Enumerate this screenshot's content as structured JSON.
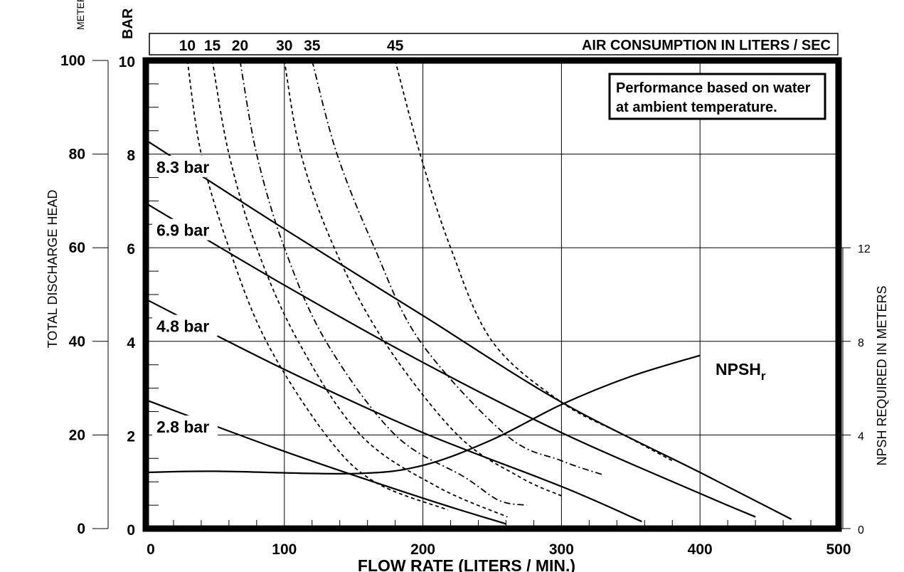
{
  "chart_data": {
    "type": "line",
    "xlabel": "FLOW RATE (LITERS / MIN.)",
    "xlim": [
      0,
      500
    ],
    "x_ticks": [
      "0",
      "100",
      "200",
      "300",
      "400",
      "500"
    ],
    "ylabel_left": "TOTAL DISCHARGE HEAD",
    "ylabel_left_unit": "METERS",
    "y_meters_ticks": [
      "0",
      "20",
      "40",
      "60",
      "80",
      "100"
    ],
    "ylabel_bar": "BAR",
    "ylim_bar": [
      0,
      10
    ],
    "y_bar_ticks": [
      "0",
      "2",
      "4",
      "6",
      "8",
      "10"
    ],
    "ylabel_right": "NPSH REQUIRED IN METERS",
    "y_npsh_ticks": [
      "0",
      "4",
      "8",
      "12"
    ],
    "air_title": "AIR CONSUMPTION IN LITERS / SEC",
    "air_labels": [
      "10",
      "15",
      "20",
      "30",
      "35",
      "45"
    ],
    "note": [
      "Performance based on water",
      "at ambient temperature."
    ],
    "npsh_label": "NPSH",
    "npsh_sub": "r",
    "pressure_series": [
      {
        "name": "8.3 bar",
        "points": [
          [
            0,
            8.3
          ],
          [
            100,
            6.4
          ],
          [
            200,
            4.55
          ],
          [
            300,
            2.7
          ],
          [
            400,
            1.2
          ],
          [
            466,
            0.2
          ]
        ]
      },
      {
        "name": "6.9 bar",
        "points": [
          [
            0,
            6.95
          ],
          [
            100,
            5.2
          ],
          [
            200,
            3.55
          ],
          [
            300,
            2.05
          ],
          [
            400,
            0.75
          ],
          [
            440,
            0.25
          ]
        ]
      },
      {
        "name": "4.8 bar",
        "points": [
          [
            0,
            4.9
          ],
          [
            100,
            3.4
          ],
          [
            200,
            2.05
          ],
          [
            300,
            0.9
          ],
          [
            358,
            0.15
          ]
        ]
      },
      {
        "name": "2.8 bar",
        "points": [
          [
            0,
            2.75
          ],
          [
            100,
            1.65
          ],
          [
            200,
            0.65
          ],
          [
            260,
            0.1
          ]
        ]
      }
    ],
    "npsh_series": {
      "name": "NPSH",
      "points": [
        [
          0,
          2.4
        ],
        [
          50,
          2.45
        ],
        [
          150,
          2.35
        ],
        [
          200,
          2.7
        ],
        [
          250,
          3.8
        ],
        [
          300,
          5.3
        ],
        [
          350,
          6.5
        ],
        [
          400,
          7.4
        ]
      ]
    },
    "air_series": [
      {
        "name": "10",
        "points": [
          [
            30,
            10
          ],
          [
            40,
            8.0
          ],
          [
            60,
            6.0
          ],
          [
            87,
            4.0
          ],
          [
            130,
            2.0
          ],
          [
            165,
            1.0
          ],
          [
            218,
            0.4
          ]
        ]
      },
      {
        "name": "15",
        "points": [
          [
            48,
            10
          ],
          [
            60,
            8.0
          ],
          [
            80,
            6.0
          ],
          [
            110,
            4.0
          ],
          [
            155,
            2.0
          ],
          [
            210,
            0.9
          ],
          [
            261,
            0.25
          ]
        ]
      },
      {
        "name": "20",
        "points": [
          [
            68,
            10
          ],
          [
            80,
            8.0
          ],
          [
            100,
            6.0
          ],
          [
            130,
            4.0
          ],
          [
            180,
            2.0
          ],
          [
            230,
            1.1
          ],
          [
            255,
            0.6
          ],
          [
            275,
            0.5
          ]
        ]
      },
      {
        "name": "30",
        "points": [
          [
            100,
            10
          ],
          [
            112,
            8.0
          ],
          [
            136,
            6.0
          ],
          [
            172,
            4.0
          ],
          [
            225,
            2.0
          ],
          [
            270,
            1.1
          ],
          [
            300,
            0.7
          ]
        ]
      },
      {
        "name": "35",
        "points": [
          [
            120,
            10
          ],
          [
            138,
            8.0
          ],
          [
            165,
            6.0
          ],
          [
            198,
            4.0
          ],
          [
            260,
            2.0
          ],
          [
            300,
            1.45
          ],
          [
            330,
            1.15
          ]
        ]
      },
      {
        "name": "45",
        "points": [
          [
            180,
            10
          ],
          [
            198,
            8.0
          ],
          [
            220,
            6.0
          ],
          [
            250,
            4.0
          ],
          [
            300,
            2.7
          ],
          [
            345,
            2.0
          ],
          [
            380,
            1.45
          ]
        ]
      }
    ]
  }
}
